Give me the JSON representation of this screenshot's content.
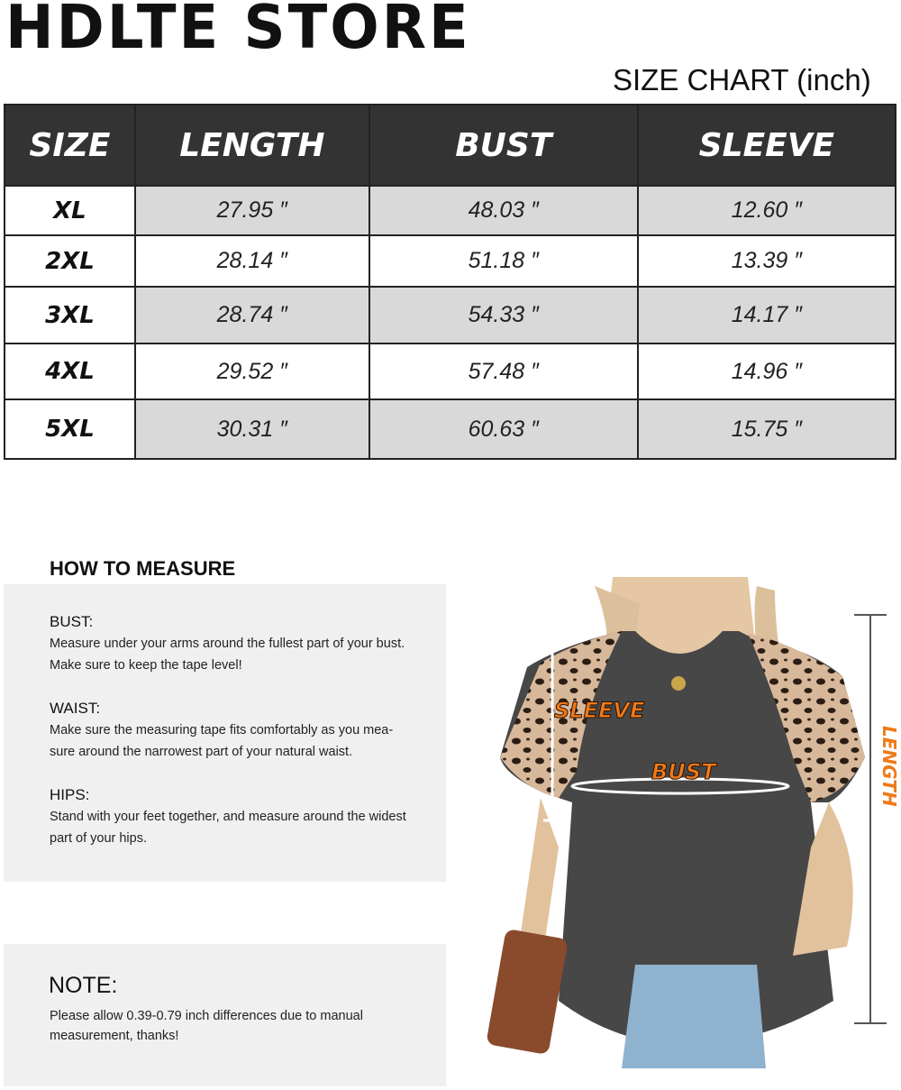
{
  "header": {
    "title": "HDLTE STORE",
    "chart_title": "SIZE CHART",
    "unit": "(inch)"
  },
  "table": {
    "columns": [
      "SIZE",
      "LENGTH",
      "BUST",
      "SLEEVE"
    ],
    "rows": [
      [
        "XL",
        "27.95 ″",
        "48.03 ″",
        "12.60 ″"
      ],
      [
        "2XL",
        "28.14 ″",
        "51.18 ″",
        "13.39 ″"
      ],
      [
        "3XL",
        "28.74 ″",
        "54.33 ″",
        "14.17 ″"
      ],
      [
        "4XL",
        "29.52 ″",
        "57.48 ″",
        "14.96 ″"
      ],
      [
        "5XL",
        "30.31 ″",
        "60.63 ″",
        "15.75 ″"
      ]
    ]
  },
  "how_to_measure": {
    "title": "HOW TO MEASURE",
    "sections": [
      {
        "heading": "BUST:",
        "lines": [
          "Measure under your arms around the fullest part of your bust.",
          "Make sure to keep the tape level!"
        ]
      },
      {
        "heading": "WAIST:",
        "lines": [
          "Make sure the measuring tape fits comfortably as you mea-",
          "sure around the narrowest part of your natural waist."
        ]
      },
      {
        "heading": "HIPS:",
        "lines": [
          "Stand with your feet together, and measure around the widest",
          "part of your hips."
        ]
      }
    ]
  },
  "note": {
    "title": "NOTE:",
    "lines": [
      "Please allow 0.39-0.79 inch differences due to manual",
      "measurement, thanks!"
    ]
  },
  "image_labels": {
    "sleeve": "SLEEVE",
    "bust": "BUST",
    "length": "LENGTH"
  }
}
